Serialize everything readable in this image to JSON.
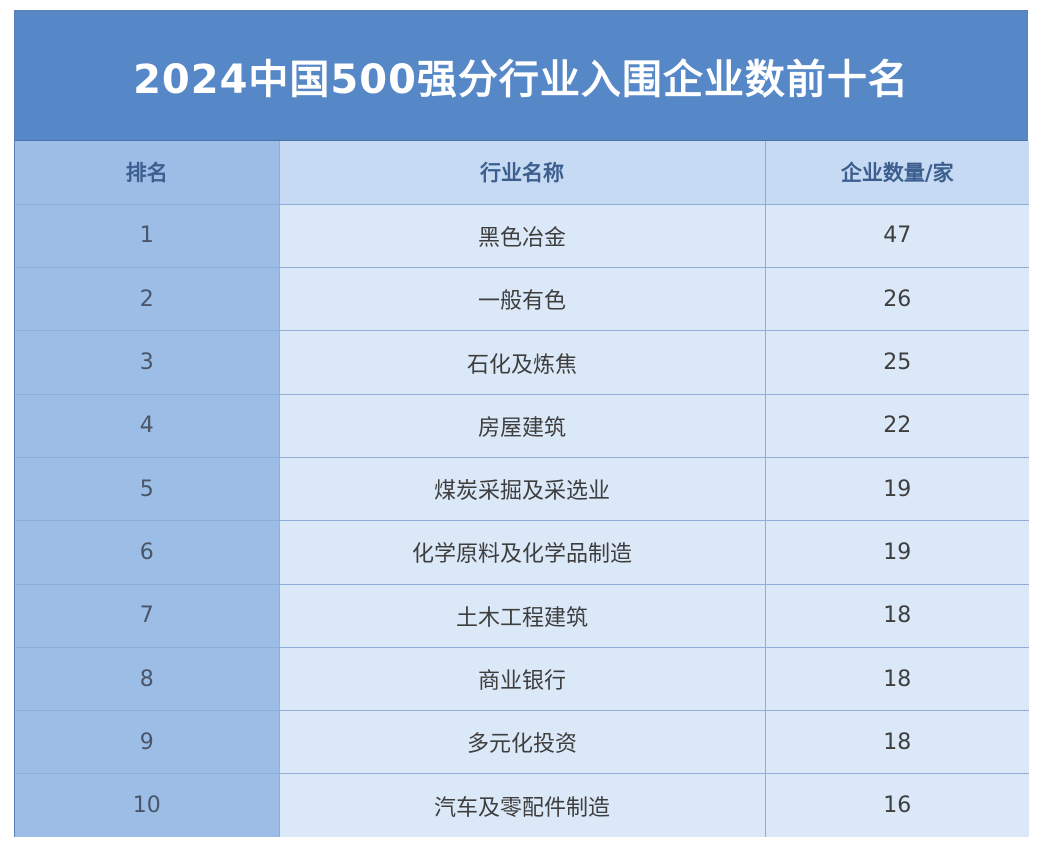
{
  "title": "2024中国500强分行业入围企业数前十名",
  "columns": [
    "排名",
    "行业名称",
    "企业数量/家"
  ],
  "rows": [
    {
      "rank": "1",
      "industry": "黑色冶金",
      "count": "47"
    },
    {
      "rank": "2",
      "industry": "一般有色",
      "count": "26"
    },
    {
      "rank": "3",
      "industry": "石化及炼焦",
      "count": "25"
    },
    {
      "rank": "4",
      "industry": "房屋建筑",
      "count": "22"
    },
    {
      "rank": "5",
      "industry": "煤炭采掘及采选业",
      "count": "19"
    },
    {
      "rank": "6",
      "industry": "化学原料及化学品制造",
      "count": "19"
    },
    {
      "rank": "7",
      "industry": "土木工程建筑",
      "count": "18"
    },
    {
      "rank": "8",
      "industry": "商业银行",
      "count": "18"
    },
    {
      "rank": "9",
      "industry": "多元化投资",
      "count": "18"
    },
    {
      "rank": "10",
      "industry": "汽车及零配件制造",
      "count": "16"
    }
  ],
  "colors": {
    "title_bg": "#5687c7",
    "header_bg": "#c6daf3",
    "rank_col_bg": "#9cbde6",
    "cell_bg": "#dbe8f8",
    "header_text": "#3c5f8f",
    "border": "#8eaed8"
  },
  "chart_data": {
    "type": "table",
    "title": "2024中国500强分行业入围企业数前十名",
    "columns": [
      "排名",
      "行业名称",
      "企业数量/家"
    ],
    "categories": [
      "黑色冶金",
      "一般有色",
      "石化及炼焦",
      "房屋建筑",
      "煤炭采掘及采选业",
      "化学原料及化学品制造",
      "土木工程建筑",
      "商业银行",
      "多元化投资",
      "汽车及零配件制造"
    ],
    "values": [
      47,
      26,
      25,
      22,
      19,
      19,
      18,
      18,
      18,
      16
    ]
  }
}
